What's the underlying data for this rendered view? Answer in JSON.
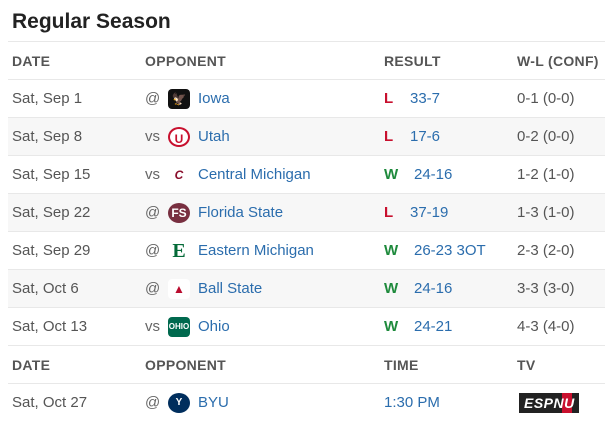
{
  "title": "Regular Season",
  "headers": [
    "DATE",
    "OPPONENT",
    "RESULT",
    "W-L (CONF)"
  ],
  "games": [
    {
      "date": "Sat, Sep 1",
      "ha": "@",
      "team": "Iowa",
      "logo": "iowa-hawkeye-logo",
      "res": "L",
      "score": "33-7",
      "wl": "0-1 (0-0)"
    },
    {
      "date": "Sat, Sep 8",
      "ha": "vs",
      "team": "Utah",
      "logo": "utah-utes-logo",
      "res": "L",
      "score": "17-6",
      "wl": "0-2 (0-0)"
    },
    {
      "date": "Sat, Sep 15",
      "ha": "vs",
      "team": "Central Michigan",
      "logo": "central-michigan-logo",
      "res": "W",
      "score": "24-16",
      "wl": "1-2 (1-0)"
    },
    {
      "date": "Sat, Sep 22",
      "ha": "@",
      "team": "Florida State",
      "logo": "florida-state-logo",
      "res": "L",
      "score": "37-19",
      "wl": "1-3 (1-0)"
    },
    {
      "date": "Sat, Sep 29",
      "ha": "@",
      "team": "Eastern Michigan",
      "logo": "eastern-michigan-logo",
      "res": "W",
      "score": "26-23 3OT",
      "wl": "2-3 (2-0)"
    },
    {
      "date": "Sat, Oct 6",
      "ha": "@",
      "team": "Ball State",
      "logo": "ball-state-logo",
      "res": "W",
      "score": "24-16",
      "wl": "3-3 (3-0)"
    },
    {
      "date": "Sat, Oct 13",
      "ha": "vs",
      "team": "Ohio",
      "logo": "ohio-bobcats-logo",
      "res": "W",
      "score": "24-21",
      "wl": "4-3 (4-0)"
    }
  ],
  "headers2": [
    "DATE",
    "OPPONENT",
    "TIME",
    "TV"
  ],
  "upcoming": [
    {
      "date": "Sat, Oct 27",
      "ha": "@",
      "team": "BYU",
      "logo": "byu-logo",
      "time": "1:30 PM",
      "tv": "ESPNU",
      "tv_logo": "espnu-logo"
    }
  ],
  "colors": {
    "win": "#1e8a3c",
    "loss": "#c8102e",
    "link": "#2b6dad"
  }
}
